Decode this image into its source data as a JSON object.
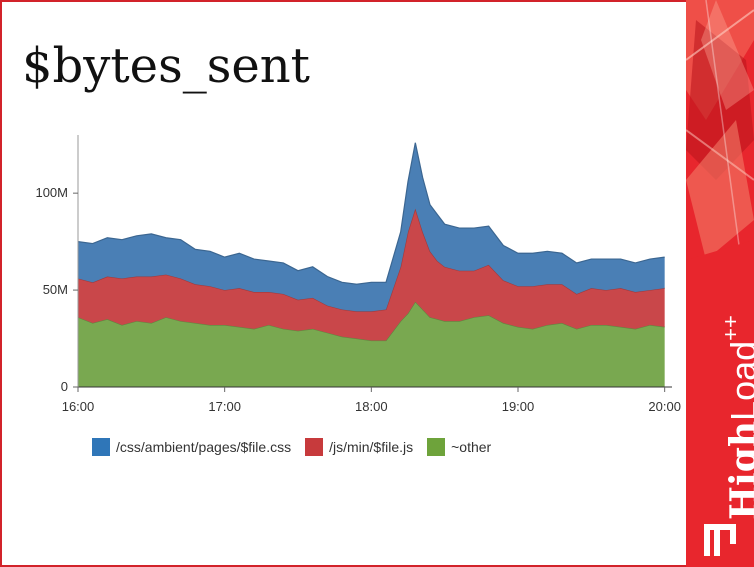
{
  "slide": {
    "title": "$bytes_sent"
  },
  "sidebar": {
    "brand_bold": "High",
    "brand_light": "Load",
    "brand_sup": "++"
  },
  "colors": {
    "accent": "#e8262d",
    "css": "#4a7fb5",
    "js": "#c9474a",
    "other": "#79a850"
  },
  "chart_data": {
    "type": "area",
    "stacked": true,
    "x_ticks": [
      "16:00",
      "17:00",
      "18:00",
      "19:00",
      "20:00"
    ],
    "y_ticks": [
      "0",
      "50M",
      "100M"
    ],
    "y_tick_values": [
      0,
      50,
      100
    ],
    "ylim": [
      0,
      130
    ],
    "xlim": [
      0,
      4.05
    ],
    "y_units": "M",
    "x": [
      0,
      0.1,
      0.2,
      0.3,
      0.4,
      0.5,
      0.6,
      0.7,
      0.8,
      0.9,
      1.0,
      1.1,
      1.2,
      1.3,
      1.4,
      1.5,
      1.6,
      1.7,
      1.8,
      1.9,
      2.0,
      2.1,
      2.2,
      2.25,
      2.3,
      2.35,
      2.4,
      2.45,
      2.5,
      2.6,
      2.7,
      2.8,
      2.9,
      3.0,
      3.1,
      3.2,
      3.3,
      3.4,
      3.5,
      3.6,
      3.7,
      3.8,
      3.9,
      4.0
    ],
    "legend_position": "bottom",
    "series": [
      {
        "name": "~other",
        "color": "#79a850",
        "values": [
          36,
          33,
          35,
          32,
          34,
          33,
          36,
          34,
          33,
          32,
          32,
          31,
          30,
          32,
          30,
          29,
          30,
          28,
          26,
          25,
          24,
          24,
          34,
          38,
          44,
          40,
          36,
          35,
          34,
          34,
          36,
          37,
          33,
          31,
          30,
          32,
          33,
          30,
          32,
          32,
          31,
          30,
          32,
          31
        ]
      },
      {
        "name": "/js/min/$file.js",
        "color": "#c9474a",
        "values": [
          20,
          21,
          22,
          24,
          23,
          24,
          22,
          22,
          20,
          20,
          18,
          20,
          19,
          17,
          18,
          16,
          16,
          14,
          14,
          14,
          15,
          16,
          28,
          42,
          48,
          40,
          34,
          30,
          28,
          26,
          24,
          26,
          22,
          21,
          22,
          21,
          20,
          18,
          19,
          18,
          20,
          19,
          18,
          20
        ]
      },
      {
        "name": "/css/ambient/pages/$file.css",
        "color": "#4a7fb5",
        "values": [
          19,
          20,
          20,
          20,
          21,
          22,
          19,
          20,
          18,
          18,
          17,
          18,
          17,
          16,
          16,
          15,
          16,
          15,
          14,
          14,
          15,
          14,
          18,
          26,
          34,
          28,
          24,
          24,
          22,
          22,
          22,
          20,
          18,
          17,
          17,
          17,
          16,
          16,
          15,
          16,
          15,
          15,
          16,
          16
        ]
      }
    ]
  },
  "legend": {
    "css": "/css/ambient/pages/$file.css",
    "js": "/js/min/$file.js",
    "other": "~other"
  }
}
